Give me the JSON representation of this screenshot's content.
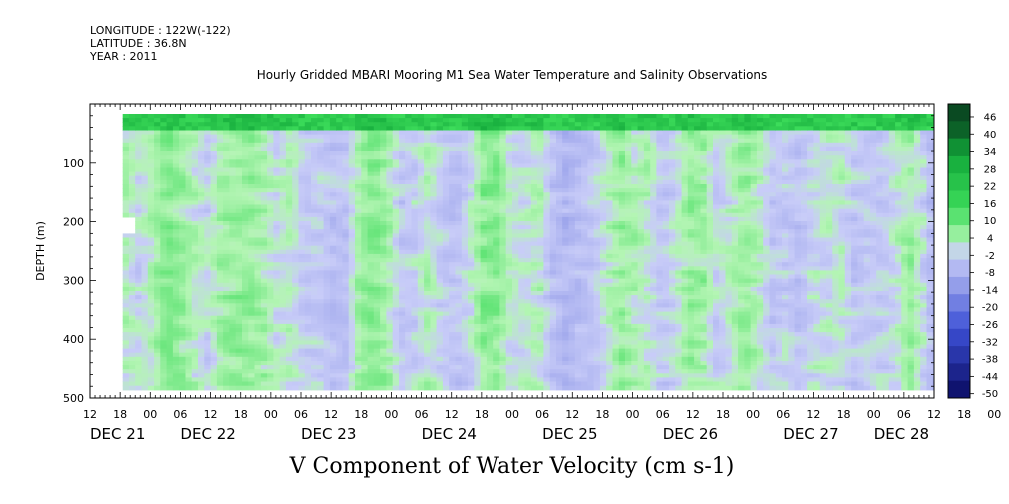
{
  "meta": {
    "longitude": "LONGITUDE : 122W(-122)",
    "latitude": "LATITUDE : 36.8N",
    "year": "YEAR : 2011"
  },
  "title": "Hourly Gridded MBARI Mooring M1 Sea Water Temperature and Salinity Observations",
  "footer": "V Component of Water Velocity (cm s-1)",
  "chart_data": {
    "type": "heatmap",
    "title": "Hourly Gridded MBARI Mooring M1 Sea Water Temperature and Salinity Observations",
    "xlabel": "",
    "ylabel": "DEPTH (m)",
    "colorbar_label": "V Component of Water Velocity (cm s-1)",
    "x_range_hours": [
      0,
      168
    ],
    "x_hour_ticks": [
      "12",
      "18",
      "00",
      "06",
      "12",
      "18",
      "00",
      "06",
      "12",
      "18",
      "00",
      "06",
      "12",
      "18",
      "00",
      "06",
      "12",
      "18",
      "00",
      "06",
      "12",
      "18",
      "00",
      "06",
      "12",
      "18",
      "00",
      "06",
      "12",
      "18",
      "00",
      "06"
    ],
    "x_date_labels": [
      "DEC 21",
      "DEC 22",
      "DEC 23",
      "DEC 24",
      "DEC 25",
      "DEC 26",
      "DEC 27",
      "DEC 28"
    ],
    "y_range": [
      0,
      500
    ],
    "y_reversed": true,
    "y_ticks": [
      "100",
      "200",
      "300",
      "400",
      "500"
    ],
    "y_tick_values": [
      100,
      200,
      300,
      400,
      500
    ],
    "data_depth_range": [
      17,
      485
    ],
    "colorbar_levels": [
      "46",
      "40",
      "34",
      "28",
      "22",
      "16",
      "10",
      "4",
      "-2",
      "-8",
      "-14",
      "-20",
      "-26",
      "-32",
      "-38",
      "-44",
      "-50"
    ],
    "colorbar_values": [
      46,
      40,
      34,
      28,
      22,
      16,
      10,
      4,
      -2,
      -8,
      -14,
      -20,
      -26,
      -32,
      -38,
      -44,
      -50
    ],
    "colors": {
      "positive_max": "#0a4a22",
      "positive_high": "#12a83a",
      "positive_mid": "#3cdc5a",
      "positive_low": "#b4f5b4",
      "zero": "#c8ccf8",
      "negative_low": "#a6adee",
      "negative_mid": "#3c50d6",
      "negative_max": "#080a60"
    }
  }
}
